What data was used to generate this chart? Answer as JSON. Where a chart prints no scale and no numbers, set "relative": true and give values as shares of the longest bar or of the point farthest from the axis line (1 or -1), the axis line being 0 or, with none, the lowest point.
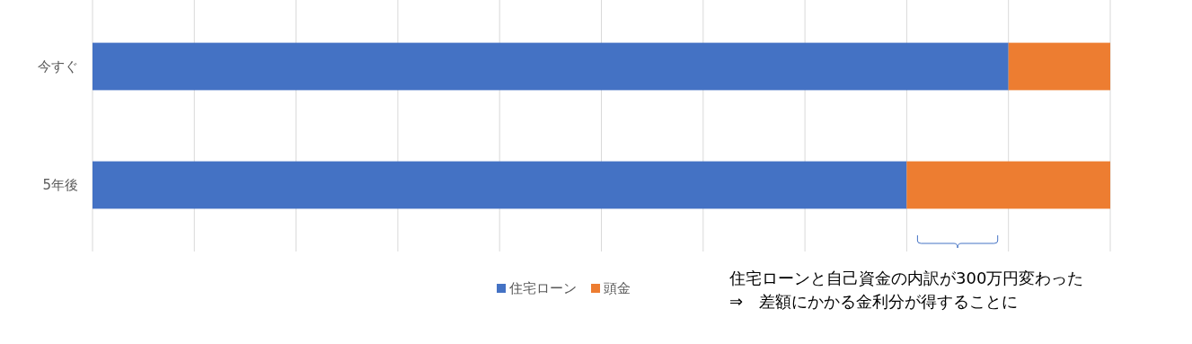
{
  "chart_data": {
    "type": "bar",
    "orientation": "horizontal",
    "stacked": true,
    "relative": true,
    "grid": "x",
    "legend": "bottom",
    "categories": [
      "今すぐ",
      "5年後"
    ],
    "series": [
      {
        "name": "住宅ローン",
        "color": "#4472c4",
        "values": [
          0.9,
          0.8
        ]
      },
      {
        "name": "頭金",
        "color": "#ed7d31",
        "values": [
          0.1,
          0.2
        ]
      }
    ],
    "annotations": [
      "住宅ローンと自己資金の内訳が300万円変わった\n⇒　差額にかかる金利分が得することに"
    ]
  }
}
